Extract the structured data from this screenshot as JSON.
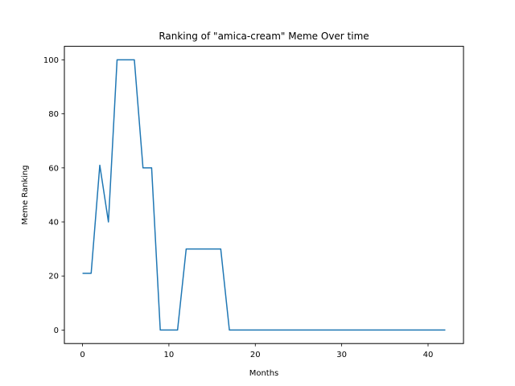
{
  "chart_data": {
    "type": "line",
    "title": "Ranking of \"amica-cream\" Meme Over time",
    "xlabel": "Months",
    "ylabel": "Meme Ranking",
    "xlim": [
      -2.1,
      44.1
    ],
    "ylim": [
      -5,
      105
    ],
    "xticks": [
      0,
      10,
      20,
      30,
      40
    ],
    "yticks": [
      0,
      20,
      40,
      60,
      80,
      100
    ],
    "grid": false,
    "line_color": "#1f77b4",
    "series": [
      {
        "x": [
          0,
          1,
          2,
          3,
          4,
          5,
          6,
          7,
          8,
          9,
          10,
          11,
          12,
          13,
          14,
          15,
          16,
          17,
          18,
          19,
          20,
          21,
          22,
          23,
          24,
          25,
          26,
          27,
          28,
          29,
          30,
          31,
          32,
          33,
          34,
          35,
          36,
          37,
          38,
          39,
          40,
          41,
          42
        ],
        "values": [
          21,
          21,
          61,
          40,
          100,
          100,
          100,
          60,
          60,
          0,
          0,
          0,
          30,
          30,
          30,
          30,
          30,
          0,
          0,
          0,
          0,
          0,
          0,
          0,
          0,
          0,
          0,
          0,
          0,
          0,
          0,
          0,
          0,
          0,
          0,
          0,
          0,
          0,
          0,
          0,
          0,
          0,
          0
        ]
      }
    ]
  }
}
